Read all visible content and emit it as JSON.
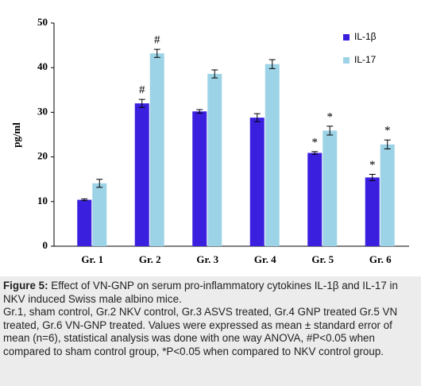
{
  "chart_data": {
    "type": "bar",
    "ylabel": "pg/ml",
    "categories": [
      "Gr. 1",
      "Gr. 2",
      "Gr. 3",
      "Gr. 4",
      "Gr. 5",
      "Gr. 6"
    ],
    "series": [
      {
        "name": "IL-1β",
        "color": "#3b1fdf",
        "values": [
          10.4,
          32,
          30.2,
          28.8,
          20.9,
          15.4
        ],
        "errors": [
          0.2,
          0.9,
          0.4,
          0.9,
          0.3,
          0.7
        ],
        "annotations": [
          null,
          "#",
          null,
          null,
          "*",
          "*"
        ]
      },
      {
        "name": "IL-17",
        "color": "#9dd3e6",
        "values": [
          14.1,
          43.2,
          38.6,
          40.8,
          25.9,
          22.8
        ],
        "errors": [
          0.9,
          0.9,
          0.9,
          1.0,
          1.0,
          1.0
        ],
        "annotations": [
          null,
          "#",
          null,
          null,
          "*",
          "*"
        ]
      }
    ],
    "ylim": [
      0,
      50
    ],
    "yticks": [
      0,
      10,
      20,
      30,
      40,
      50
    ],
    "legend": "upper right"
  },
  "caption": {
    "label": "Figure 5:",
    "text": "Effect of VN-GNP on serum pro-inflammatory cytokines IL-1β and IL-17 in NKV induced Swiss male albino mice.",
    "note": "Gr.1, sham control, Gr.2 NKV control, Gr.3 ASVS treated, Gr.4 GNP treated Gr.5 VN treated, Gr.6 VN-GNP treated. Values were expressed as mean ± standard error of mean (n=6), statistical analysis was done with one way ANOVA, #P<0.05 when compared to sham control group, *P<0.05 when compared to NKV control group."
  }
}
